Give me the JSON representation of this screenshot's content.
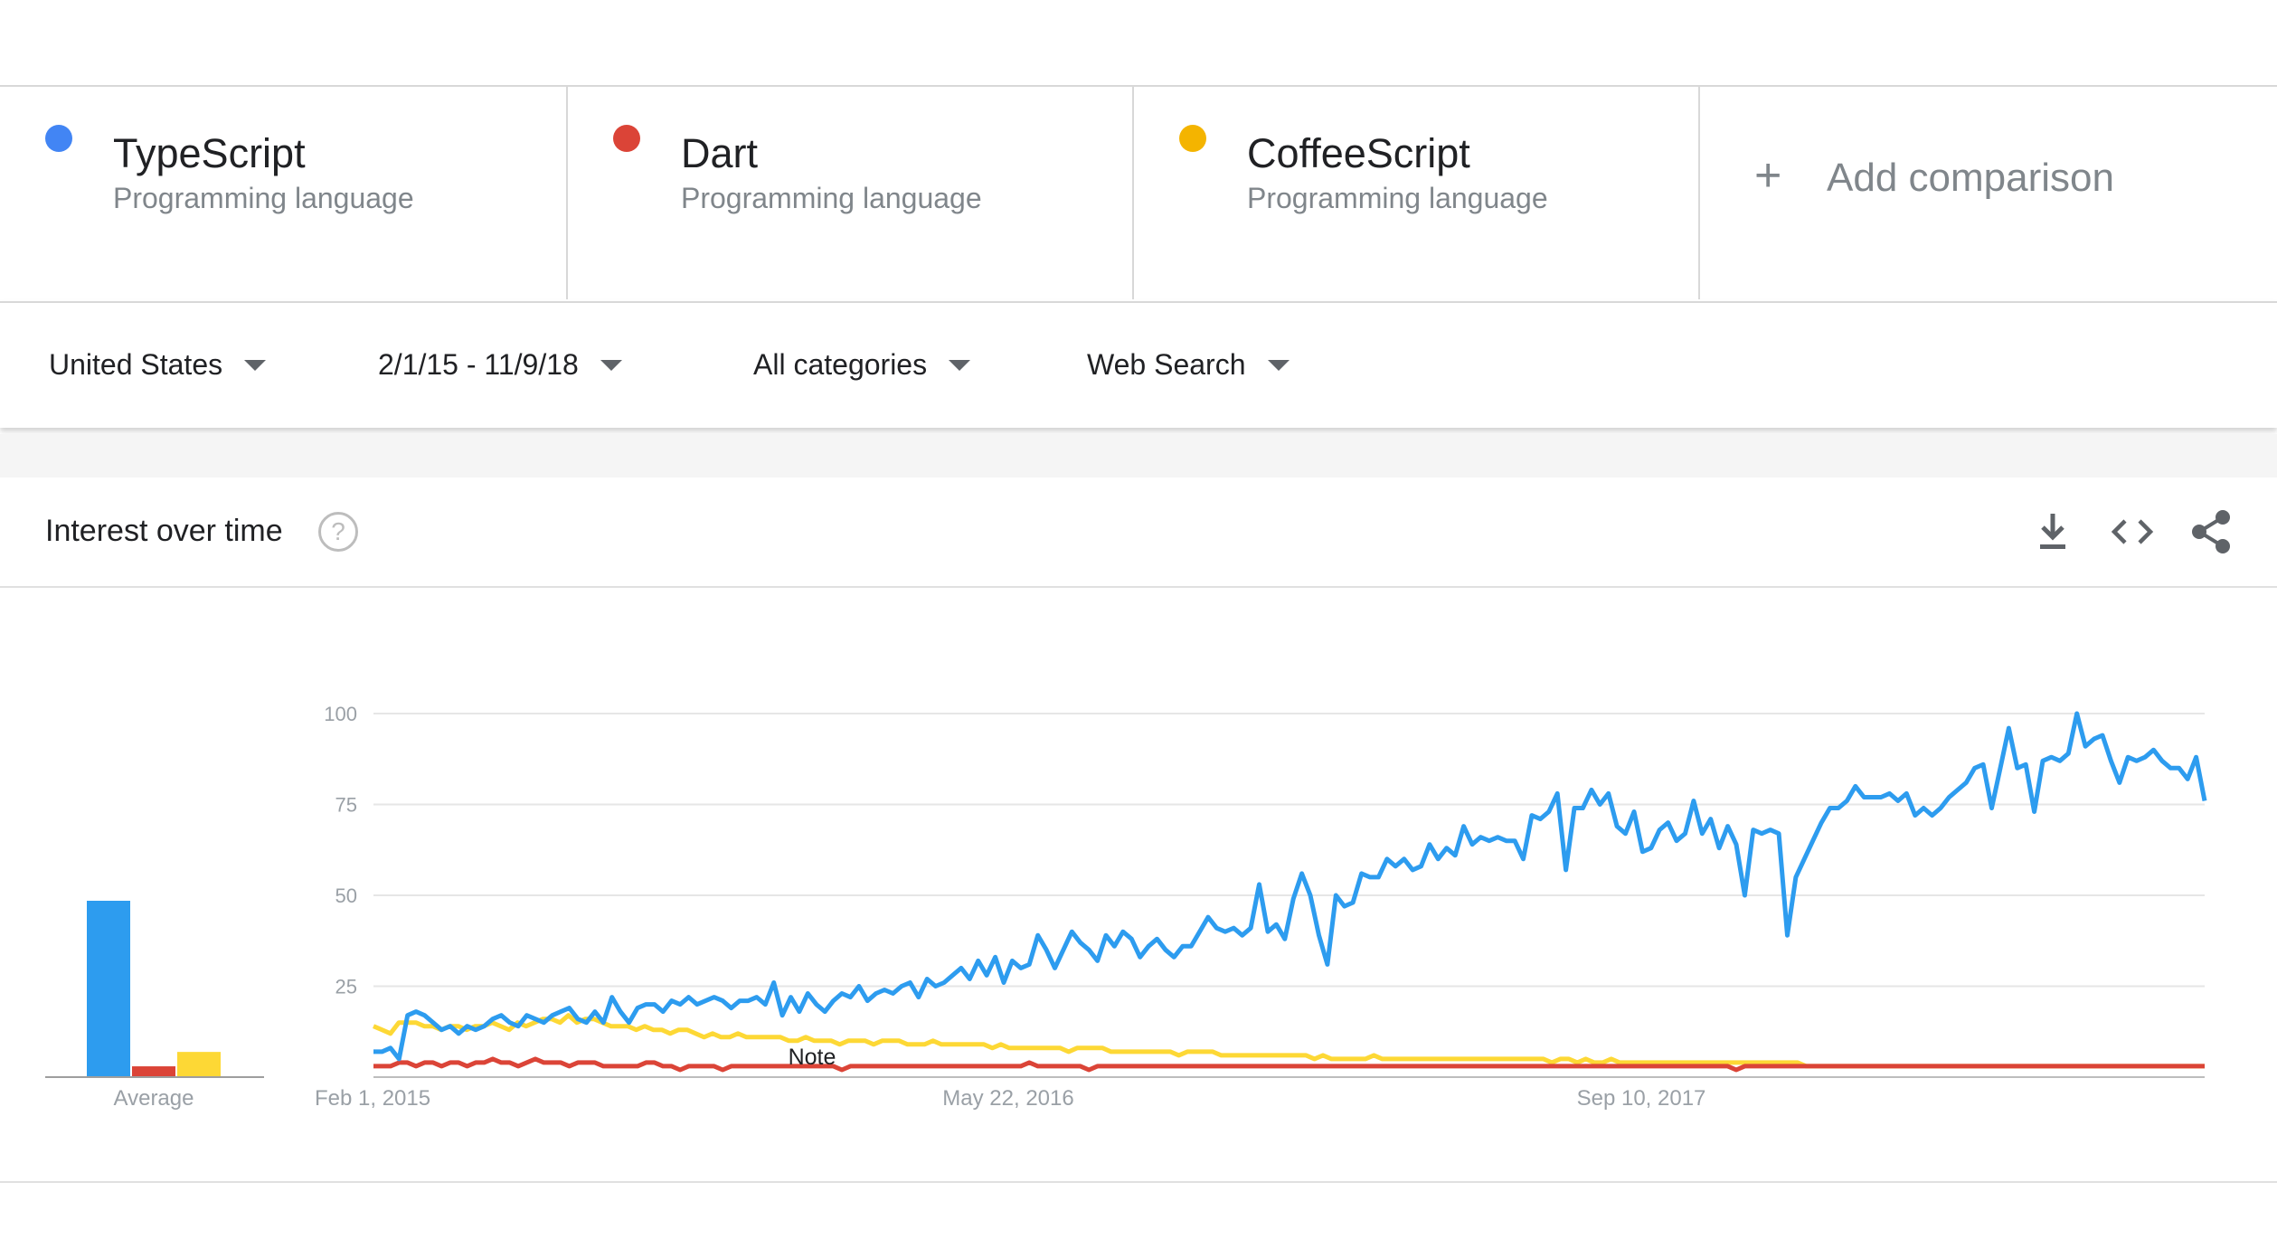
{
  "terms": [
    {
      "name": "TypeScript",
      "type": "Programming language",
      "color": "#4285f4"
    },
    {
      "name": "Dart",
      "type": "Programming language",
      "color": "#db4437"
    },
    {
      "name": "CoffeeScript",
      "type": "Programming language",
      "color": "#f4b400"
    }
  ],
  "add_comparison": {
    "icon": "+",
    "label": "Add comparison"
  },
  "filters": {
    "region": "United States",
    "date_range": "2/1/15 - 11/9/18",
    "category": "All categories",
    "search_type": "Web Search"
  },
  "panel": {
    "title": "Interest over time",
    "help_icon": "?",
    "actions": [
      "download-icon",
      "embed-icon",
      "share-icon"
    ]
  },
  "chart_data": {
    "type": "line",
    "title": "",
    "ylim": [
      0,
      100
    ],
    "y_ticks": [
      25,
      50,
      75,
      100
    ],
    "x_tick_labels": [
      "Feb 1, 2015",
      "May 22, 2016",
      "Sep 10, 2017"
    ],
    "grid": true,
    "note_label": "Note",
    "average": {
      "label": "Average",
      "values": [
        {
          "name": "TypeScript",
          "value": 49
        },
        {
          "name": "Dart",
          "value": 3
        },
        {
          "name": "CoffeeScript",
          "value": 7
        }
      ]
    },
    "series": [
      {
        "name": "TypeScript",
        "color": "#2d9cef",
        "values": [
          7,
          7,
          8,
          5,
          17,
          18,
          17,
          15,
          13,
          14,
          12,
          14,
          13,
          14,
          16,
          17,
          15,
          14,
          17,
          16,
          15,
          17,
          18,
          19,
          16,
          15,
          18,
          15,
          22,
          18,
          15,
          19,
          20,
          20,
          18,
          21,
          20,
          22,
          20,
          21,
          22,
          21,
          19,
          21,
          21,
          22,
          20,
          26,
          17,
          22,
          18,
          23,
          20,
          18,
          21,
          23,
          22,
          25,
          21,
          23,
          24,
          23,
          25,
          26,
          22,
          27,
          25,
          26,
          28,
          30,
          27,
          32,
          28,
          33,
          26,
          32,
          30,
          31,
          39,
          35,
          30,
          35,
          40,
          37,
          35,
          32,
          39,
          36,
          40,
          38,
          33,
          36,
          38,
          35,
          33,
          36,
          36,
          40,
          44,
          41,
          40,
          41,
          39,
          41,
          53,
          40,
          42,
          38,
          49,
          56,
          50,
          39,
          31,
          50,
          47,
          48,
          56,
          55,
          55,
          60,
          58,
          60,
          57,
          58,
          64,
          60,
          63,
          61,
          69,
          64,
          66,
          65,
          66,
          65,
          65,
          60,
          72,
          71,
          73,
          78,
          57,
          74,
          74,
          79,
          75,
          78,
          69,
          67,
          73,
          62,
          63,
          68,
          70,
          65,
          67,
          76,
          67,
          71,
          63,
          69,
          64,
          50,
          68,
          67,
          68,
          67,
          39,
          55,
          60,
          65,
          70,
          74,
          74,
          76,
          80,
          77,
          77,
          77,
          78,
          76,
          78,
          72,
          74,
          72,
          74,
          77,
          79,
          81,
          85,
          86,
          74,
          85,
          96,
          85,
          86,
          73,
          87,
          88,
          87,
          89,
          100,
          91,
          93,
          94,
          87,
          81,
          88,
          87,
          88,
          90,
          87,
          85,
          85,
          82,
          88,
          76
        ]
      },
      {
        "name": "Dart",
        "color": "#db4437",
        "values": [
          3,
          3,
          3,
          4,
          4,
          3,
          4,
          4,
          3,
          4,
          4,
          3,
          4,
          4,
          5,
          4,
          4,
          3,
          4,
          5,
          4,
          4,
          4,
          3,
          4,
          4,
          4,
          3,
          3,
          3,
          3,
          3,
          4,
          4,
          3,
          3,
          2,
          3,
          3,
          3,
          3,
          2,
          3,
          3,
          3,
          3,
          3,
          3,
          3,
          3,
          3,
          3,
          3,
          3,
          3,
          2,
          3,
          3,
          3,
          3,
          3,
          3,
          3,
          3,
          3,
          3,
          3,
          3,
          3,
          3,
          3,
          3,
          3,
          3,
          3,
          3,
          3,
          4,
          3,
          3,
          3,
          3,
          3,
          3,
          2,
          3,
          3,
          3,
          3,
          3,
          3,
          3,
          3,
          3,
          3,
          3,
          3,
          3,
          3,
          3,
          3,
          3,
          3,
          3,
          3,
          3,
          3,
          3,
          3,
          3,
          3,
          3,
          3,
          3,
          3,
          3,
          3,
          3,
          3,
          3,
          3,
          3,
          3,
          3,
          3,
          3,
          3,
          3,
          3,
          3,
          3,
          3,
          3,
          3,
          3,
          3,
          3,
          3,
          3,
          3,
          3,
          3,
          3,
          3,
          3,
          3,
          3,
          3,
          3,
          3,
          3,
          3,
          3,
          3,
          3,
          3,
          3,
          3,
          3,
          3,
          2,
          3,
          3,
          3,
          3,
          3,
          3,
          3,
          3,
          3,
          3,
          3,
          3,
          3,
          3,
          3,
          3,
          3,
          3,
          3,
          3,
          3,
          3,
          3,
          3,
          3,
          3,
          3,
          3,
          3,
          3,
          3,
          3,
          3,
          3,
          3,
          3,
          3,
          3,
          3,
          3,
          3,
          3,
          3,
          3,
          3,
          3,
          3,
          3,
          3,
          3,
          3,
          3,
          3,
          3,
          3
        ]
      },
      {
        "name": "CoffeeScript",
        "color": "#fdd835",
        "values": [
          14,
          13,
          12,
          15,
          15,
          15,
          14,
          14,
          13,
          14,
          14,
          13,
          14,
          14,
          15,
          14,
          13,
          15,
          14,
          15,
          16,
          16,
          15,
          17,
          15,
          16,
          16,
          15,
          14,
          14,
          14,
          13,
          14,
          13,
          13,
          12,
          13,
          13,
          12,
          11,
          12,
          11,
          11,
          12,
          11,
          11,
          11,
          11,
          11,
          10,
          10,
          11,
          10,
          10,
          10,
          9,
          10,
          10,
          10,
          9,
          10,
          10,
          10,
          9,
          9,
          9,
          10,
          9,
          9,
          9,
          9,
          9,
          9,
          8,
          9,
          8,
          8,
          8,
          8,
          8,
          8,
          8,
          7,
          8,
          8,
          8,
          8,
          7,
          7,
          7,
          7,
          7,
          7,
          7,
          7,
          6,
          7,
          7,
          7,
          7,
          6,
          6,
          6,
          6,
          6,
          6,
          6,
          6,
          6,
          6,
          6,
          5,
          6,
          5,
          5,
          5,
          5,
          5,
          6,
          5,
          5,
          5,
          5,
          5,
          5,
          5,
          5,
          5,
          5,
          5,
          5,
          5,
          5,
          5,
          5,
          5,
          5,
          5,
          5,
          4,
          5,
          5,
          4,
          5,
          4,
          4,
          5,
          4,
          4,
          4,
          4,
          4,
          4,
          4,
          4,
          4,
          4,
          4,
          4,
          4,
          4,
          4,
          4,
          4,
          4,
          4,
          4,
          4,
          4,
          3,
          3,
          3,
          3,
          3,
          3,
          3,
          3,
          3,
          3,
          3,
          3,
          3,
          3,
          3,
          3,
          3,
          3,
          3,
          3,
          3,
          3,
          3,
          3,
          3,
          3,
          3,
          3,
          3,
          3,
          3,
          3,
          3,
          3,
          3,
          3,
          3,
          3,
          3,
          3,
          3,
          3,
          3,
          3,
          3,
          3,
          3,
          3
        ]
      }
    ]
  }
}
